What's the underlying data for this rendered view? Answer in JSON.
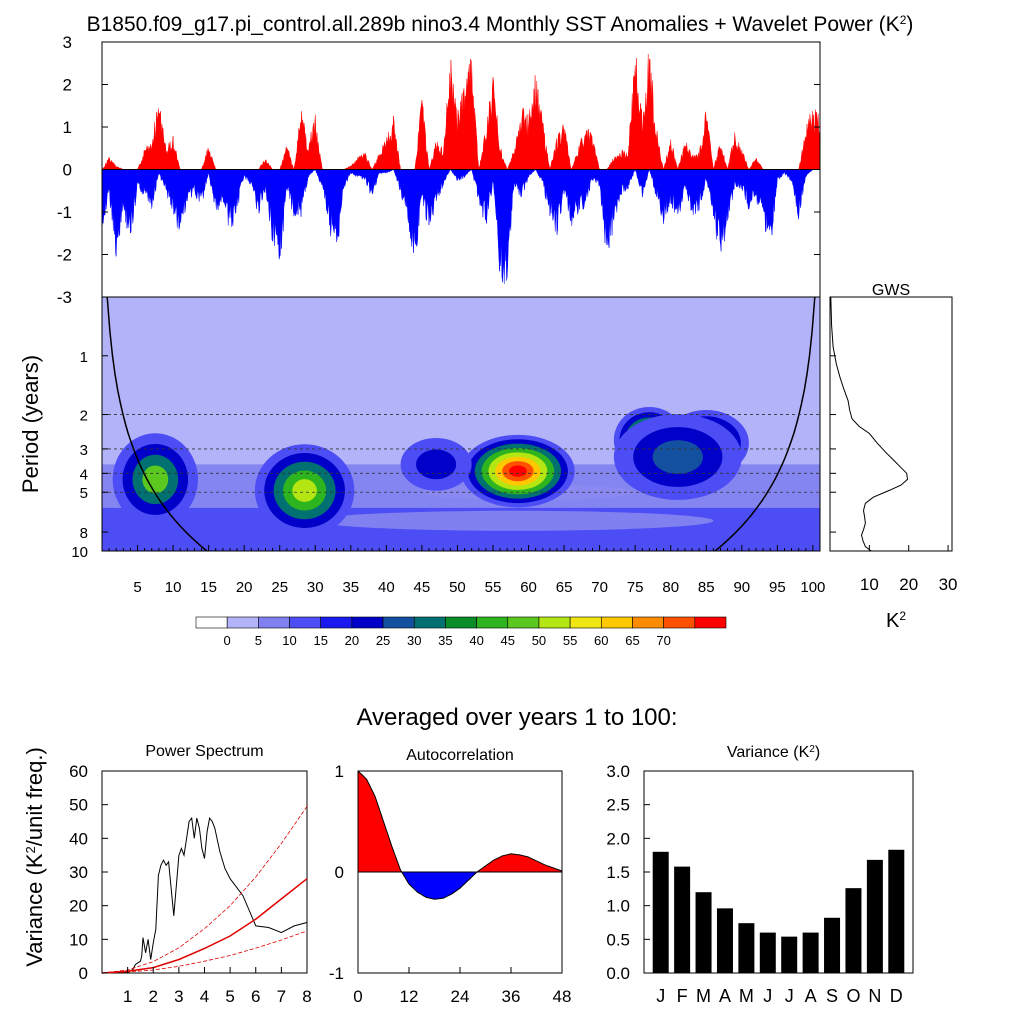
{
  "title_main": "B1850.f09_g17.pi_control.all.289b nino3.4 Monthly SST Anomalies + Wavelet Power (K²)",
  "section_title": "Averaged over years 1 to 100:",
  "colors": {
    "positive": "#ff0000",
    "negative": "#0000ff",
    "axis": "#000000",
    "bars": "#000000"
  },
  "chart_data": [
    {
      "type": "area",
      "name": "sst-anomaly-timeseries",
      "xlim": [
        0,
        101
      ],
      "ylim": [
        -3,
        3
      ],
      "yticks": [
        3,
        2,
        1,
        0,
        -1,
        -2,
        -3
      ],
      "grid": false,
      "envelope_x": [
        0,
        1,
        2,
        3,
        4,
        5,
        6,
        7,
        8,
        9,
        10,
        11,
        12,
        13,
        14,
        15,
        16,
        17,
        18,
        19,
        20,
        21,
        22,
        23,
        24,
        25,
        26,
        27,
        28,
        29,
        30,
        31,
        32,
        33,
        34,
        35,
        36,
        37,
        38,
        39,
        40,
        41,
        42,
        43,
        44,
        45,
        46,
        47,
        48,
        49,
        50,
        51,
        52,
        53,
        54,
        55,
        56,
        57,
        58,
        59,
        60,
        61,
        62,
        63,
        64,
        65,
        66,
        67,
        68,
        69,
        70,
        71,
        72,
        73,
        74,
        75,
        76,
        77,
        78,
        79,
        80,
        81,
        82,
        83,
        84,
        85,
        86,
        87,
        88,
        89,
        90,
        91,
        92,
        93,
        94,
        95,
        96,
        97,
        98,
        99,
        100,
        101
      ],
      "envelope_max": [
        0.0,
        0.3,
        0.1,
        0.0,
        0.0,
        0.0,
        0.5,
        0.7,
        1.8,
        0.5,
        0.8,
        0.0,
        0.0,
        0.0,
        0.0,
        0.6,
        0.0,
        0.0,
        0.0,
        0.0,
        0.0,
        0.0,
        0.0,
        0.3,
        0.0,
        0.0,
        0.6,
        0.0,
        1.5,
        0.6,
        1.3,
        0.0,
        0.0,
        0.0,
        0.0,
        0.1,
        0.3,
        0.4,
        0.0,
        0.4,
        0.8,
        1.3,
        0.0,
        0.0,
        0.0,
        1.8,
        0.0,
        0.7,
        0.5,
        2.7,
        1.4,
        2.2,
        2.8,
        0.0,
        1.0,
        2.3,
        0.6,
        0.0,
        0.5,
        1.5,
        1.3,
        2.4,
        1.2,
        0.0,
        0.8,
        1.2,
        0.0,
        0.5,
        1.1,
        0.8,
        0.0,
        0.0,
        0.3,
        0.5,
        0.4,
        3.0,
        1.3,
        3.0,
        1.0,
        0.0,
        0.8,
        0.0,
        0.8,
        0.4,
        0.4,
        1.5,
        0.0,
        0.7,
        0.0,
        0.9,
        0.5,
        0.0,
        0.3,
        0.0,
        0.0,
        0.0,
        0.0,
        0.0,
        0.0,
        1.0,
        1.6,
        1.4
      ],
      "envelope_min": [
        -1.4,
        -0.7,
        -2.1,
        -1.0,
        -1.8,
        -0.4,
        -0.7,
        -1.0,
        -0.1,
        -0.6,
        -1.0,
        -1.8,
        -0.8,
        -0.6,
        -0.9,
        -0.1,
        -1.2,
        -0.8,
        -1.6,
        -1.0,
        -0.2,
        -0.4,
        -1.1,
        -0.5,
        -1.8,
        -2.4,
        -0.6,
        -1.1,
        -1.2,
        -0.2,
        0.0,
        -0.5,
        -1.5,
        -2.1,
        -0.5,
        -0.1,
        -0.2,
        -0.3,
        -0.7,
        -0.1,
        -0.1,
        0.0,
        -0.6,
        -1.2,
        -2.4,
        -0.9,
        -1.5,
        -0.8,
        -0.4,
        0.0,
        -0.3,
        -0.2,
        0.0,
        -0.8,
        -1.4,
        -0.4,
        -2.6,
        -2.8,
        -0.4,
        -0.7,
        -0.2,
        0.0,
        -0.4,
        -1.1,
        -1.6,
        -0.6,
        -1.4,
        -1.1,
        -0.9,
        -0.3,
        -0.4,
        -2.3,
        -1.3,
        -0.6,
        -0.5,
        0.0,
        -0.7,
        0.0,
        -0.7,
        -1.3,
        -0.8,
        -1.3,
        -0.4,
        -1.1,
        -1.0,
        -0.3,
        -1.4,
        -2.1,
        -1.5,
        -0.4,
        -0.5,
        -1.0,
        -0.8,
        -1.3,
        -2.0,
        -0.3,
        -0.1,
        -0.3,
        -1.2,
        -0.2,
        0.0,
        0.0
      ]
    },
    {
      "type": "heatmap",
      "name": "wavelet-power",
      "ylabel": "Period (years)",
      "xticks": [
        5,
        10,
        15,
        20,
        25,
        30,
        35,
        40,
        45,
        50,
        55,
        60,
        65,
        70,
        75,
        80,
        85,
        90,
        95,
        100
      ],
      "yticks": [
        1,
        2,
        3,
        4,
        5,
        8,
        10
      ],
      "xlim": [
        0,
        101
      ],
      "ylim": [
        0.5,
        10
      ],
      "ylog": true,
      "dashed_periods": [
        2,
        3,
        4,
        5
      ],
      "levels": [
        0,
        5,
        10,
        15,
        20,
        25,
        30,
        35,
        40,
        45,
        50,
        55,
        60,
        65,
        70
      ],
      "level_colors": [
        "#ffffff",
        "#b3b3fa",
        "#8080f0",
        "#4d4df5",
        "#1a1af0",
        "#0000c8",
        "#1450a0",
        "#007070",
        "#0a8c28",
        "#2db41e",
        "#5ac81e",
        "#b4e614",
        "#f0e614",
        "#ffc800",
        "#ff8c00",
        "#ff5000",
        "#ff0000"
      ],
      "background_level": 1,
      "blobs": [
        {
          "x": 7.5,
          "p": 4.3,
          "rx": 6,
          "ry": 0.14,
          "levels": [
            3,
            5,
            7,
            10
          ]
        },
        {
          "x": 28.5,
          "p": 4.9,
          "rx": 7,
          "ry": 0.14,
          "levels": [
            3,
            5,
            7,
            9,
            11
          ]
        },
        {
          "x": 58.5,
          "p": 3.9,
          "rx": 8,
          "ry": 0.11,
          "levels": [
            3,
            5,
            7,
            9,
            11,
            13,
            15,
            16
          ]
        },
        {
          "x": 47,
          "p": 3.6,
          "rx": 5,
          "ry": 0.08,
          "levels": [
            3,
            5
          ]
        },
        {
          "x": 77,
          "p": 2.7,
          "rx": 5,
          "ry": 0.1,
          "levels": [
            3,
            5,
            7,
            9,
            11,
            12
          ]
        },
        {
          "x": 85,
          "p": 2.8,
          "rx": 6,
          "ry": 0.1,
          "levels": [
            3,
            5,
            7,
            9,
            11
          ]
        },
        {
          "x": 81,
          "p": 3.3,
          "rx": 9,
          "ry": 0.13,
          "levels": [
            3,
            5,
            6
          ]
        }
      ]
    },
    {
      "type": "line",
      "name": "global-wavelet-spectrum",
      "title": "GWS",
      "xlabel": "K²",
      "xticks": [
        10,
        20,
        30
      ],
      "xlim": [
        0,
        31
      ],
      "period": [
        0.5,
        0.7,
        0.9,
        1.1,
        1.3,
        1.5,
        1.7,
        1.9,
        2.1,
        2.3,
        2.5,
        2.8,
        3.1,
        3.4,
        3.7,
        4.0,
        4.3,
        4.6,
        4.9,
        5.3,
        5.7,
        6.2,
        6.7,
        7.2,
        7.7,
        8.3,
        8.9,
        9.5,
        10.0
      ],
      "power": [
        0.2,
        0.4,
        0.8,
        1.6,
        2.6,
        3.6,
        4.6,
        5.0,
        5.6,
        7.4,
        10.0,
        12.0,
        14.0,
        16.0,
        17.8,
        19.5,
        19.7,
        18.0,
        15.0,
        11.0,
        9.0,
        8.5,
        8.8,
        9.0,
        8.6,
        8.0,
        8.4,
        9.0,
        10.5
      ]
    },
    {
      "type": "line",
      "name": "power-spectrum",
      "title": "Power Spectrum",
      "ylabel": "Variance (K²/unit freq.)",
      "xticks": [
        1,
        2,
        3,
        4,
        5,
        6,
        7,
        8
      ],
      "yticks": [
        0,
        10,
        20,
        30,
        40,
        50,
        60
      ],
      "xlim": [
        0,
        8
      ],
      "ylim": [
        0,
        60
      ],
      "series": [
        {
          "x": [
            0,
            0.5,
            0.8,
            1.0,
            1.2,
            1.3,
            1.5,
            1.55,
            1.6,
            1.7,
            1.8,
            1.9,
            2.0,
            2.1,
            2.2,
            2.3,
            2.4,
            2.5,
            2.6,
            2.8,
            3.0,
            3.1,
            3.2,
            3.3,
            3.4,
            3.5,
            3.6,
            3.7,
            3.8,
            3.9,
            4.0,
            4.1,
            4.2,
            4.3,
            4.4,
            4.6,
            4.8,
            5.0,
            5.5,
            6.0,
            6.5,
            7.0,
            7.5,
            8.0
          ],
          "y": [
            0,
            0,
            0.5,
            0.2,
            1.0,
            2.5,
            3.5,
            5.0,
            10.5,
            6.0,
            10.0,
            4.0,
            9.0,
            13.0,
            29.0,
            32.0,
            33.5,
            32.0,
            33.0,
            17.0,
            35.0,
            37.0,
            35.0,
            40.0,
            45.0,
            46.0,
            40.0,
            46.0,
            43.0,
            37.0,
            34.0,
            42.0,
            46.0,
            45.0,
            43.0,
            36.0,
            31.0,
            28.0,
            23.0,
            14.0,
            13.5,
            12.0,
            14.0,
            15.0
          ]
        },
        {
          "x": [
            0,
            1,
            2,
            3,
            4,
            5,
            6,
            7,
            8
          ],
          "y": [
            0,
            0.5,
            1.6,
            4.0,
            7.3,
            11.0,
            16.0,
            22.0,
            28.0
          ]
        },
        {
          "x": [
            0,
            1,
            2,
            3,
            4,
            5,
            6,
            7,
            8
          ],
          "y": [
            0,
            0.9,
            3.4,
            7.5,
            13.2,
            20.0,
            28.5,
            38.5,
            49.5
          ]
        },
        {
          "x": [
            0,
            1,
            2,
            3,
            4,
            5,
            6,
            7,
            8
          ],
          "y": [
            0,
            0.3,
            0.9,
            2.0,
            3.5,
            5.2,
            7.4,
            9.8,
            12.5
          ]
        }
      ]
    },
    {
      "type": "area",
      "name": "autocorrelation",
      "title": "Autocorrelation",
      "xticks": [
        0,
        12,
        24,
        36,
        48
      ],
      "yticks": [
        1,
        0,
        -1
      ],
      "xlim": [
        0,
        48
      ],
      "ylim": [
        -1,
        1
      ],
      "x": [
        0,
        2,
        4,
        6,
        8,
        10,
        12,
        14,
        16,
        18,
        20,
        22,
        24,
        26,
        28,
        30,
        32,
        34,
        36,
        38,
        40,
        42,
        44,
        46,
        48
      ],
      "y": [
        1.0,
        0.92,
        0.75,
        0.5,
        0.25,
        0.02,
        -0.12,
        -0.2,
        -0.25,
        -0.27,
        -0.26,
        -0.22,
        -0.16,
        -0.08,
        0.0,
        0.06,
        0.12,
        0.16,
        0.18,
        0.17,
        0.15,
        0.11,
        0.07,
        0.04,
        0.01
      ]
    },
    {
      "type": "bar",
      "name": "monthly-variance",
      "title": "Variance (K²)",
      "categories": [
        "J",
        "F",
        "M",
        "A",
        "M",
        "J",
        "J",
        "A",
        "S",
        "O",
        "N",
        "D"
      ],
      "values": [
        1.8,
        1.58,
        1.2,
        0.96,
        0.74,
        0.6,
        0.54,
        0.6,
        0.82,
        1.26,
        1.68,
        1.83
      ],
      "yticks": [
        "0.0",
        "0.5",
        "1.0",
        "1.5",
        "2.0",
        "2.5",
        "3.0"
      ],
      "ylim": [
        0,
        3.0
      ]
    }
  ]
}
